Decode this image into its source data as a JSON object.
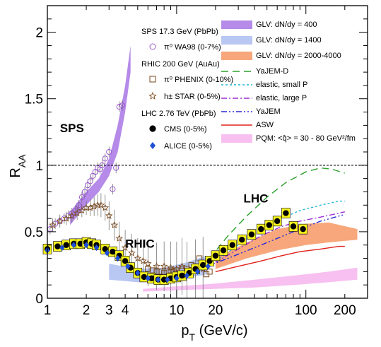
{
  "chart_data": {
    "type": "scatter",
    "xlabel": "p",
    "xlabel_sub": "T",
    "xlabel_unit": "(GeV/c)",
    "ylabel": "R",
    "ylabel_sub": "AA",
    "x_scale": "log",
    "xlim": [
      1,
      300
    ],
    "ylim": [
      0,
      2.2
    ],
    "x_ticks": [
      1,
      2,
      3,
      4,
      10,
      20,
      100,
      200
    ],
    "y_ticks": [
      0,
      0.5,
      1,
      1.5,
      2
    ],
    "y_tick_labels": [
      "0",
      "0.5",
      "1",
      "1.5",
      "2"
    ],
    "reference_line": 1,
    "annotations": [
      {
        "text": "SPS",
        "color": "#9b59d0",
        "x": 1.55,
        "y": 1.25
      },
      {
        "text": "RHIC",
        "color": "#7a4a1e",
        "x": 5.2,
        "y": 0.38
      },
      {
        "text": "LHC",
        "color": "#000000",
        "x": 41,
        "y": 0.72
      }
    ],
    "legend_left": {
      "placement": "top-center",
      "entries": [
        {
          "type": "header",
          "text": "SPS 17.3 GeV (PbPb)"
        },
        {
          "type": "marker",
          "marker": "open-circle",
          "color": "#9b59d0",
          "text": "π⁰  WA98 (0-7%)"
        },
        {
          "type": "header",
          "text": "RHIC 200 GeV (AuAu)"
        },
        {
          "type": "marker",
          "marker": "open-square",
          "color": "#7a4a1e",
          "text": "π⁰  PHENIX (0-10%)"
        },
        {
          "type": "marker",
          "marker": "open-star",
          "color": "#7a4a1e",
          "text": "h±  STAR (0-5%)"
        },
        {
          "type": "header",
          "text": "LHC 2.76 TeV (PbPb)"
        },
        {
          "type": "marker",
          "marker": "filled-circle",
          "color": "#000000",
          "text": "CMS (0-5%)"
        },
        {
          "type": "marker",
          "marker": "filled-diamond",
          "color": "#1f4fd6",
          "text": "ALICE (0-5%)"
        }
      ]
    },
    "legend_right": {
      "placement": "top-right",
      "entries": [
        {
          "style": "band",
          "color": "#b58ae8",
          "text": "GLV: dN/dy = 400"
        },
        {
          "style": "band",
          "color": "#b9c8f2",
          "text": "GLV: dN/dy = 1400"
        },
        {
          "style": "band",
          "color": "#f7a77b",
          "text": "GLV: dN/dy = 2000-4000"
        },
        {
          "style": "dashed",
          "color": "#2ca02c",
          "text": "YaJEM-D"
        },
        {
          "style": "dotted",
          "color": "#22b5d8",
          "text": "elastic, small P"
        },
        {
          "style": "dashdot",
          "color": "#9e2fd6",
          "text": "elastic, large P"
        },
        {
          "style": "dashdotdot",
          "color": "#2a2ad6",
          "text": "YaJEM"
        },
        {
          "style": "solid",
          "color": "#e0201b",
          "text": "ASW"
        },
        {
          "style": "band",
          "color": "#f7c0f0",
          "text": "PQM: <q̂> = 30 - 80 GeV²/fm"
        }
      ]
    },
    "series": [
      {
        "name": "π⁰  WA98 (0-7%)",
        "marker": "open-circle",
        "color": "#9b59d0",
        "x": [
          1.05,
          1.15,
          1.25,
          1.35,
          1.45,
          1.55,
          1.65,
          1.75,
          1.85,
          1.95,
          2.05,
          2.15,
          2.25,
          2.35,
          2.45,
          2.55,
          2.65,
          2.8,
          3.0,
          3.2,
          3.4,
          3.6,
          3.8
        ],
        "y": [
          0.52,
          0.56,
          0.58,
          0.6,
          0.62,
          0.64,
          0.66,
          0.7,
          0.76,
          0.8,
          0.85,
          0.88,
          0.92,
          0.95,
          0.98,
          0.97,
          1.0,
          1.05,
          1.1,
          0.82,
          0.98,
          1.44,
          1.45
        ]
      },
      {
        "name": "π⁰  PHENIX (0-10%)",
        "marker": "open-square",
        "color": "#7a4a1e",
        "x": [
          6,
          6.5,
          7,
          7.5,
          8,
          8.5,
          9,
          9.5,
          10,
          11,
          12,
          13,
          14,
          15,
          16,
          17,
          18
        ],
        "y": [
          0.22,
          0.21,
          0.2,
          0.2,
          0.19,
          0.2,
          0.21,
          0.2,
          0.21,
          0.22,
          0.22,
          0.25,
          0.24,
          0.3,
          0.26,
          0.18,
          0.2
        ]
      },
      {
        "name": "h±  STAR (0-5%)",
        "marker": "open-star",
        "color": "#7a4a1e",
        "x": [
          1.1,
          1.25,
          1.4,
          1.55,
          1.7,
          1.85,
          2.0,
          2.15,
          2.3,
          2.45,
          2.6,
          2.8,
          3.0,
          3.3,
          3.6,
          4.0,
          4.5,
          5.0,
          5.5,
          6.0,
          7.0,
          8.0,
          9.0,
          10.0,
          11.0,
          12.0,
          14.0,
          16.0
        ],
        "y": [
          0.55,
          0.58,
          0.6,
          0.62,
          0.64,
          0.66,
          0.68,
          0.68,
          0.69,
          0.7,
          0.7,
          0.68,
          0.62,
          0.55,
          0.45,
          0.38,
          0.34,
          0.3,
          0.28,
          0.26,
          0.24,
          0.24,
          0.23,
          0.22,
          0.24,
          0.2,
          0.21,
          0.22
        ]
      },
      {
        "name": "CMS (0-5%)",
        "marker": "filled-circle",
        "color": "#000000",
        "x": [
          1.0,
          1.2,
          1.4,
          1.6,
          1.8,
          2.0,
          2.2,
          2.4,
          2.8,
          3.2,
          3.6,
          4.0,
          4.4,
          5.0,
          5.6,
          6.4,
          7.2,
          8.0,
          9.0,
          10.0,
          11.0,
          12.5,
          14.0,
          16.0,
          18.0,
          20.0,
          23.0,
          27.0,
          32.0,
          38.0,
          45.0,
          52.0,
          60.0,
          70.0,
          80.0,
          95.0
        ],
        "y": [
          0.37,
          0.39,
          0.4,
          0.41,
          0.41,
          0.42,
          0.41,
          0.4,
          0.37,
          0.35,
          0.32,
          0.28,
          0.23,
          0.19,
          0.16,
          0.15,
          0.14,
          0.14,
          0.15,
          0.16,
          0.17,
          0.19,
          0.22,
          0.25,
          0.28,
          0.32,
          0.36,
          0.4,
          0.44,
          0.48,
          0.52,
          0.55,
          0.58,
          0.64,
          0.54,
          0.52
        ]
      },
      {
        "name": "ALICE (0-5%)",
        "marker": "filled-diamond",
        "color": "#1f4fd6",
        "x": [
          1.0,
          1.3,
          1.6,
          2.0,
          2.4,
          2.9,
          3.5,
          4.2,
          5.0,
          6.0,
          7.2,
          8.5,
          10.0,
          12.0,
          14.5,
          17.5
        ],
        "y": [
          0.36,
          0.38,
          0.4,
          0.4,
          0.38,
          0.34,
          0.3,
          0.24,
          0.19,
          0.15,
          0.14,
          0.14,
          0.15,
          0.17,
          0.2,
          0.24
        ]
      }
    ],
    "curves": [
      {
        "name": "YaJEM-D",
        "style": "dashed",
        "color": "#2ca02c",
        "x": [
          18,
          25,
          35,
          50,
          70,
          100,
          130,
          160,
          200
        ],
        "y": [
          0.3,
          0.47,
          0.62,
          0.76,
          0.87,
          0.95,
          0.98,
          0.97,
          0.94
        ]
      },
      {
        "name": "elastic, small P",
        "style": "dotted",
        "color": "#22b5d8",
        "x": [
          20,
          30,
          45,
          65,
          90,
          130,
          180,
          200
        ],
        "y": [
          0.28,
          0.4,
          0.52,
          0.6,
          0.66,
          0.7,
          0.73,
          0.73
        ]
      },
      {
        "name": "elastic, large P",
        "style": "dashdot",
        "color": "#9e2fd6",
        "x": [
          20,
          30,
          45,
          65,
          90,
          130,
          180,
          200
        ],
        "y": [
          0.27,
          0.37,
          0.47,
          0.54,
          0.58,
          0.61,
          0.64,
          0.65
        ]
      },
      {
        "name": "YaJEM",
        "style": "dashdotdot",
        "color": "#2a2ad6",
        "x": [
          6,
          10,
          15,
          25,
          40,
          60,
          90,
          130,
          200
        ],
        "y": [
          0.16,
          0.18,
          0.22,
          0.3,
          0.38,
          0.45,
          0.52,
          0.58,
          0.63
        ]
      },
      {
        "name": "ASW",
        "style": "solid",
        "color": "#e0201b",
        "x": [
          20,
          30,
          45,
          65,
          90,
          130,
          180,
          200
        ],
        "y": [
          0.2,
          0.24,
          0.28,
          0.32,
          0.35,
          0.37,
          0.39,
          0.39
        ]
      }
    ],
    "bands": [
      {
        "name": "GLV: dN/dy = 400",
        "color": "#b58ae8",
        "x": [
          1.5,
          2.0,
          2.5,
          3.0,
          3.5,
          4.0,
          4.4
        ],
        "ylow": [
          0.55,
          0.7,
          0.8,
          0.92,
          1.1,
          1.4,
          1.7
        ],
        "yhigh": [
          0.65,
          0.8,
          0.9,
          1.05,
          1.3,
          1.6,
          1.9
        ]
      },
      {
        "name": "GLV: dN/dy = 1400",
        "color": "#b9c8f2",
        "x": [
          3.0,
          5.0,
          8.0,
          12.0,
          17.0
        ],
        "ylow": [
          0.14,
          0.12,
          0.13,
          0.15,
          0.18
        ],
        "yhigh": [
          0.26,
          0.22,
          0.23,
          0.27,
          0.32
        ]
      },
      {
        "name": "GLV: dN/dy = 2000-4000",
        "color": "#f7a77b",
        "x": [
          20,
          35,
          60,
          100,
          150,
          250
        ],
        "ylow": [
          0.22,
          0.3,
          0.36,
          0.4,
          0.42,
          0.44
        ],
        "yhigh": [
          0.3,
          0.42,
          0.52,
          0.56,
          0.57,
          0.52
        ]
      },
      {
        "name": "PQM",
        "color": "#f7c0f0",
        "x": [
          5.5,
          10,
          20,
          40,
          80,
          150,
          250
        ],
        "ylow": [
          0.05,
          0.06,
          0.07,
          0.08,
          0.1,
          0.12,
          0.14
        ],
        "yhigh": [
          0.07,
          0.09,
          0.11,
          0.14,
          0.17,
          0.2,
          0.23
        ]
      }
    ]
  }
}
